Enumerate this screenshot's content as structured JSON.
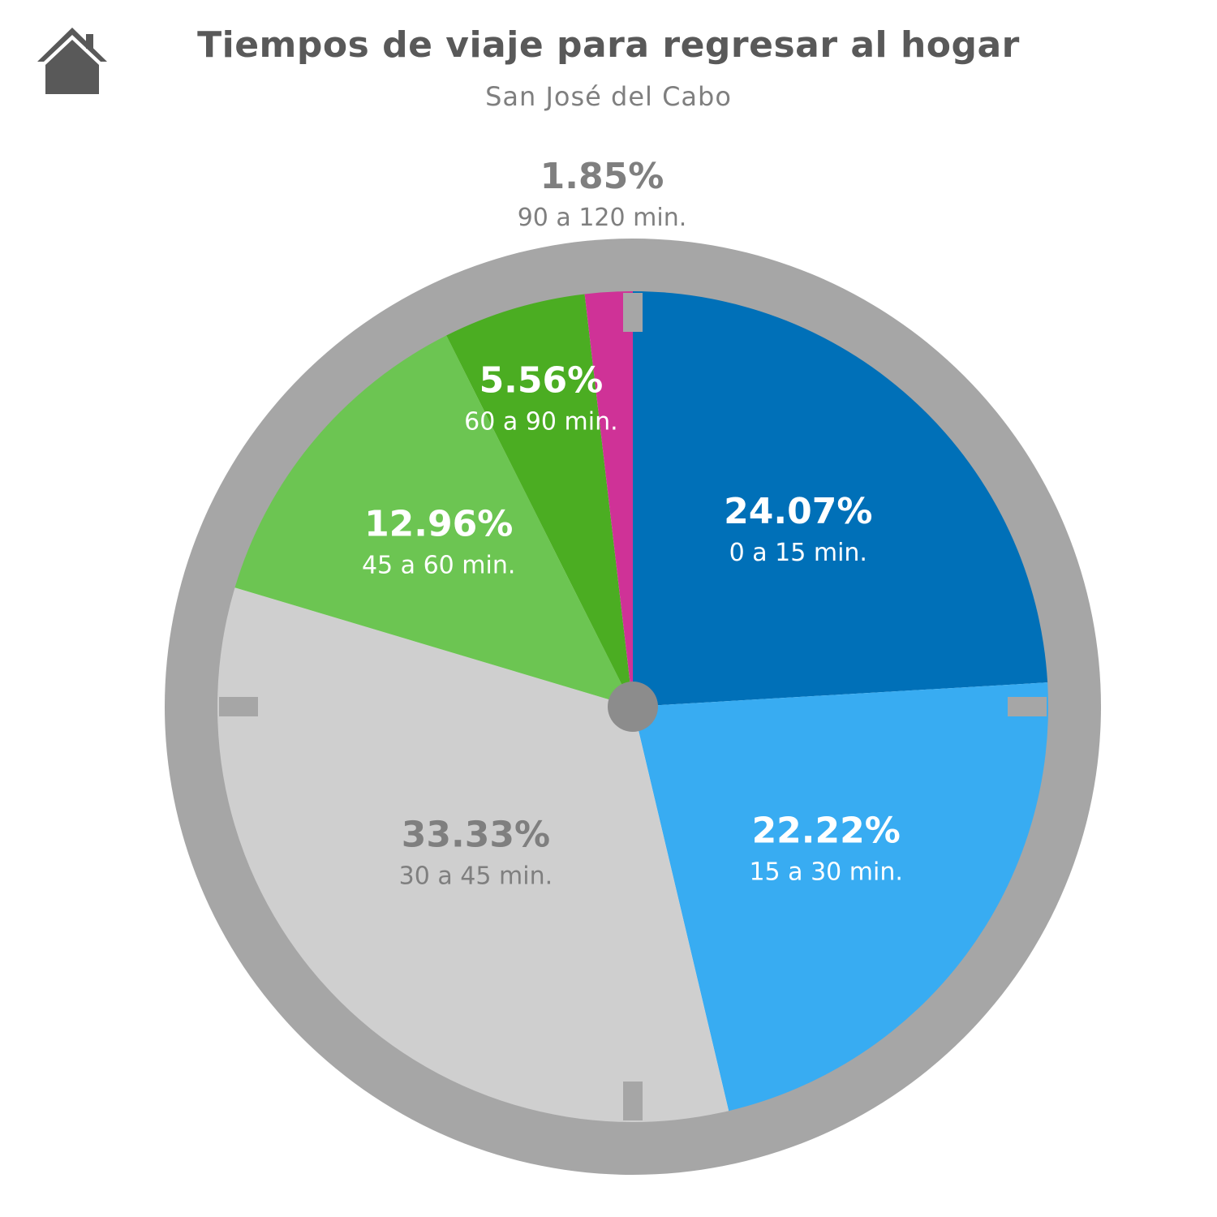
{
  "header": {
    "icon": "home-icon",
    "title": "Tiempos de viaje para regresar al hogar",
    "subtitle": "San José del Cabo"
  },
  "chart_data": {
    "type": "pie",
    "title": "Tiempos de viaje para regresar al hogar",
    "subtitle": "San José del Cabo",
    "slices": [
      {
        "label": "0 a 15 min.",
        "value": 24.07,
        "display": "24.07%",
        "color": "#0070b8",
        "text_color": "#ffffff"
      },
      {
        "label": "15 a 30 min.",
        "value": 22.22,
        "display": "22.22%",
        "color": "#38acf2",
        "text_color": "#ffffff"
      },
      {
        "label": "30 a 45 min.",
        "value": 33.33,
        "display": "33.33%",
        "color": "#cfcfcf",
        "text_color": "#7f7f7f"
      },
      {
        "label": "45 a 60 min.",
        "value": 12.96,
        "display": "12.96%",
        "color": "#6cc552",
        "text_color": "#ffffff"
      },
      {
        "label": "60 a 90 min.",
        "value": 5.56,
        "display": "5.56%",
        "color": "#4bad22",
        "text_color": "#ffffff"
      },
      {
        "label": "90 a 120 min.",
        "value": 1.85,
        "display": "1.85%",
        "color": "#cf3297",
        "text_color": "#7f7f7f",
        "label_outside": true
      }
    ],
    "colors": {
      "rim": "#a6a6a6",
      "center_dot": "#8c8c8c",
      "icon": "#595959"
    }
  }
}
